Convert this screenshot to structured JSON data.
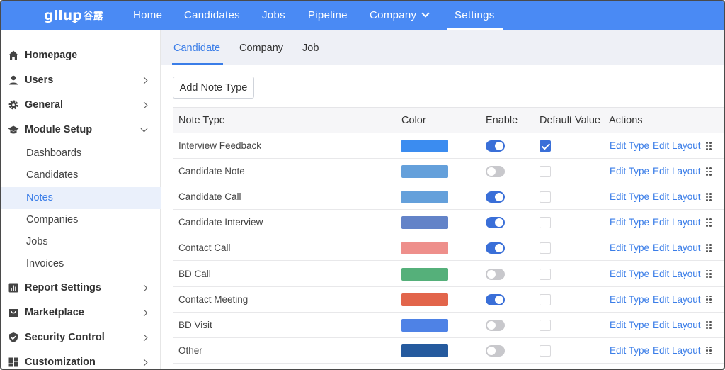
{
  "header": {
    "logo_text": "glluꝑ",
    "logo_cn": "谷露",
    "nav": [
      {
        "label": "Home"
      },
      {
        "label": "Candidates"
      },
      {
        "label": "Jobs"
      },
      {
        "label": "Pipeline"
      },
      {
        "label": "Company"
      },
      {
        "label": "Settings"
      }
    ]
  },
  "sidebar": {
    "items": [
      {
        "label": "Homepage"
      },
      {
        "label": "Users"
      },
      {
        "label": "General"
      },
      {
        "label": "Module Setup"
      },
      {
        "label": "Report Settings"
      },
      {
        "label": "Marketplace"
      },
      {
        "label": "Security Control"
      },
      {
        "label": "Customization"
      }
    ],
    "sub_items": [
      {
        "label": "Dashboards"
      },
      {
        "label": "Candidates"
      },
      {
        "label": "Notes"
      },
      {
        "label": "Companies"
      },
      {
        "label": "Jobs"
      },
      {
        "label": "Invoices"
      }
    ]
  },
  "tabs": [
    {
      "label": "Candidate"
    },
    {
      "label": "Company"
    },
    {
      "label": "Job"
    }
  ],
  "add_button_label": "Add Note Type",
  "table": {
    "headers": {
      "note_type": "Note Type",
      "color": "Color",
      "enable": "Enable",
      "default_value": "Default Value",
      "actions": "Actions"
    },
    "edit_type_label": "Edit Type",
    "edit_layout_label": "Edit Layout",
    "rows": [
      {
        "name": "Interview Feedback",
        "color": "#3b8cf0",
        "enabled": true,
        "default": true
      },
      {
        "name": "Candidate Note",
        "color": "#64a0db",
        "enabled": false,
        "default": false
      },
      {
        "name": "Candidate Call",
        "color": "#64a0db",
        "enabled": true,
        "default": false
      },
      {
        "name": "Candidate Interview",
        "color": "#6383c8",
        "enabled": true,
        "default": false
      },
      {
        "name": "Contact Call",
        "color": "#ee8f8b",
        "enabled": true,
        "default": false
      },
      {
        "name": "BD Call",
        "color": "#55b07a",
        "enabled": false,
        "default": false
      },
      {
        "name": "Contact Meeting",
        "color": "#e2654b",
        "enabled": true,
        "default": false
      },
      {
        "name": "BD Visit",
        "color": "#4e82e6",
        "enabled": false,
        "default": false
      },
      {
        "name": "Other",
        "color": "#255a9e",
        "enabled": false,
        "default": false
      }
    ]
  }
}
